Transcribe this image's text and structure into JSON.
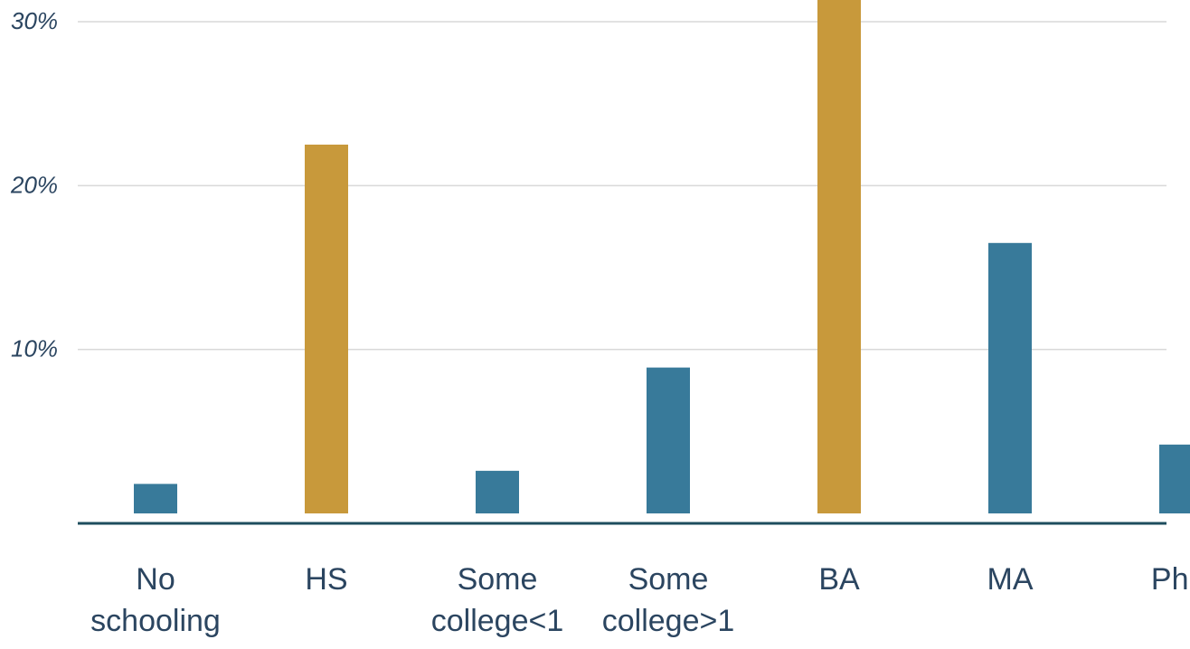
{
  "chart_data": {
    "type": "bar",
    "categories": [
      [
        "No",
        "schooling"
      ],
      [
        "HS"
      ],
      [
        "Some",
        "college<1"
      ],
      [
        "Some",
        "college>1"
      ],
      [
        "BA"
      ],
      [
        "MA"
      ],
      [
        "PhD"
      ]
    ],
    "values": [
      1.8,
      22.5,
      2.6,
      8.9,
      31.5,
      16.5,
      4.2
    ],
    "highlighted": [
      false,
      true,
      false,
      false,
      true,
      false,
      false
    ],
    "y_ticks": [
      {
        "value": 10,
        "label": "10%"
      },
      {
        "value": 20,
        "label": "20%"
      },
      {
        "value": 30,
        "label": "30%"
      }
    ],
    "ylim": [
      0,
      30
    ],
    "grid": true,
    "colors": {
      "bar": "#387a9a",
      "highlight": "#c8993b",
      "grid": "#d9d9d9",
      "axis": "#1e4d5e",
      "text": "#2b4560"
    }
  }
}
